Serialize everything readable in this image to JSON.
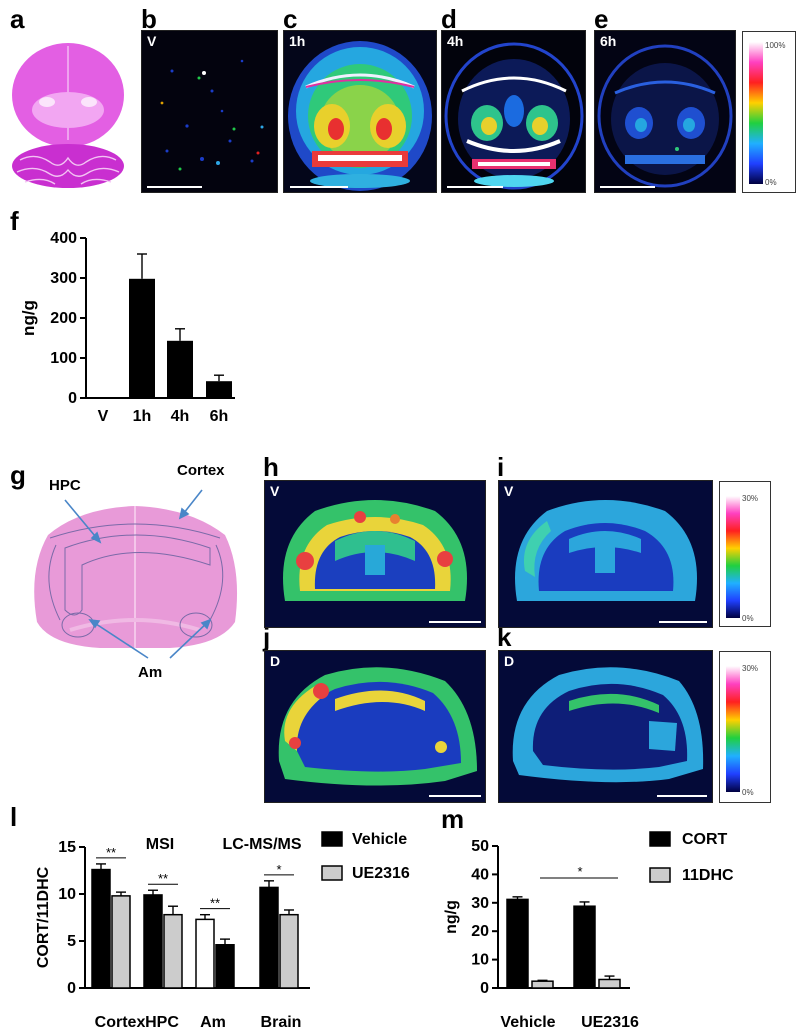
{
  "panel_labels": {
    "a": "a",
    "b": "b",
    "c": "c",
    "d": "d",
    "e": "e",
    "f": "f",
    "g": "g",
    "h": "h",
    "i": "i",
    "j": "j",
    "k": "k",
    "l": "l",
    "m": "m"
  },
  "image_tags": {
    "b": "V",
    "c": "1h",
    "d": "4h",
    "e": "6h",
    "h": "V",
    "i": "V",
    "j": "D",
    "k": "D"
  },
  "colorbar_top": {
    "max": "100%",
    "min": "0%"
  },
  "colorbar_mid": {
    "max": "30%",
    "min": "0%"
  },
  "colorbar_bot": {
    "max": "30%",
    "min": "0%"
  },
  "anatomy": {
    "hpc": "HPC",
    "cortex": "Cortex",
    "am": "Am"
  },
  "colors": {
    "bar_black": "#000000",
    "bar_gray": "#cccccc",
    "bar_white": "#ffffff",
    "brain_stain": "#e060e0",
    "arrow": "#4a86c8"
  },
  "chart_data": [
    {
      "id": "f",
      "type": "bar",
      "ylabel": "ng/g",
      "categories": [
        "V",
        "1h",
        "4h",
        "6h"
      ],
      "values": [
        0,
        298,
        143,
        42
      ],
      "errors": [
        0,
        62,
        30,
        15
      ],
      "ylim": [
        0,
        400
      ],
      "yticks": [
        "0",
        "100",
        "200",
        "300",
        "400"
      ]
    },
    {
      "id": "l",
      "type": "bar",
      "ylabel": "CORT/11DHC",
      "categories": [
        "Cortex",
        "HPC",
        "Am",
        "Brain"
      ],
      "header_left": "MSI",
      "header_right": "LC-MS/MS",
      "series": [
        {
          "name": "Vehicle",
          "values": [
            12.6,
            9.9,
            7.3,
            10.7
          ],
          "errors": [
            0.6,
            0.5,
            0.5,
            0.7
          ]
        },
        {
          "name": "UE2316",
          "values": [
            9.8,
            7.8,
            4.6,
            7.8
          ],
          "errors": [
            0.4,
            0.9,
            0.6,
            0.5
          ]
        }
      ],
      "significance": [
        "**",
        "**",
        "**",
        "*"
      ],
      "ylim": [
        0,
        15
      ],
      "yticks": [
        "0",
        "5",
        "10",
        "15"
      ]
    },
    {
      "id": "m",
      "type": "bar",
      "ylabel": "ng/g",
      "categories": [
        "Vehicle",
        "UE2316"
      ],
      "series": [
        {
          "name": "CORT",
          "values": [
            31.2,
            28.8
          ],
          "errors": [
            0.9,
            1.5
          ]
        },
        {
          "name": "11DHC",
          "values": [
            2.4,
            3.0
          ],
          "errors": [
            0.3,
            1.2
          ]
        }
      ],
      "significance": "*",
      "ylim": [
        0,
        50
      ],
      "yticks": [
        "0",
        "10",
        "20",
        "30",
        "40",
        "50"
      ]
    }
  ]
}
